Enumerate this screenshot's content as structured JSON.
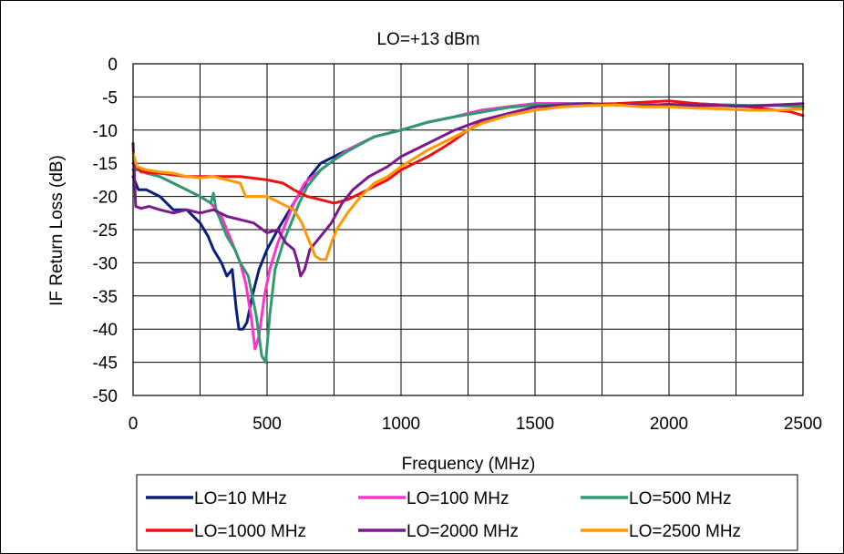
{
  "chart_data": {
    "type": "line",
    "title": "LO=+13 dBm",
    "xlabel": "Frequency (MHz)",
    "ylabel": "IF Return Loss (dB)",
    "xlim": [
      0,
      2500
    ],
    "ylim": [
      -50,
      0
    ],
    "xticks": [
      0,
      500,
      1000,
      1500,
      2000,
      2500
    ],
    "yticks": [
      0,
      -5,
      -10,
      -15,
      -20,
      -25,
      -30,
      -35,
      -40,
      -45,
      -50
    ],
    "x_gridlines": [
      0,
      250,
      500,
      750,
      1000,
      1250,
      1500,
      1750,
      2000,
      2250,
      2500
    ],
    "grid": true,
    "legend_position": "bottom",
    "series": [
      {
        "name": "LO=10 MHz",
        "color": "#0a1f7a",
        "points": [
          [
            0,
            -17
          ],
          [
            20,
            -19
          ],
          [
            50,
            -19
          ],
          [
            100,
            -20
          ],
          [
            150,
            -22
          ],
          [
            200,
            -22
          ],
          [
            250,
            -24
          ],
          [
            280,
            -26
          ],
          [
            300,
            -28
          ],
          [
            330,
            -30
          ],
          [
            350,
            -32
          ],
          [
            370,
            -31
          ],
          [
            385,
            -37
          ],
          [
            395,
            -40
          ],
          [
            410,
            -40
          ],
          [
            425,
            -39
          ],
          [
            445,
            -35
          ],
          [
            470,
            -31
          ],
          [
            500,
            -28
          ],
          [
            540,
            -25
          ],
          [
            570,
            -23
          ],
          [
            600,
            -21
          ],
          [
            615,
            -20
          ],
          [
            630,
            -19
          ],
          [
            660,
            -17
          ],
          [
            700,
            -15
          ],
          [
            750,
            -14
          ],
          [
            800,
            -13
          ],
          [
            900,
            -11
          ],
          [
            1000,
            -10
          ],
          [
            1100,
            -8.8
          ],
          [
            1200,
            -8
          ],
          [
            1300,
            -7
          ],
          [
            1400,
            -6.5
          ],
          [
            1500,
            -6
          ],
          [
            1600,
            -6
          ],
          [
            1700,
            -6
          ],
          [
            1800,
            -6.2
          ],
          [
            1900,
            -6.1
          ],
          [
            2000,
            -6.3
          ],
          [
            2100,
            -6
          ],
          [
            2200,
            -6.2
          ],
          [
            2300,
            -6.3
          ],
          [
            2400,
            -6.3
          ],
          [
            2500,
            -6.5
          ]
        ]
      },
      {
        "name": "LO=100 MHz",
        "color": "#ff33cc",
        "points": [
          [
            0,
            -16
          ],
          [
            30,
            -16
          ],
          [
            50,
            -16.5
          ],
          [
            100,
            -17
          ],
          [
            150,
            -18
          ],
          [
            200,
            -19
          ],
          [
            250,
            -20
          ],
          [
            290,
            -21
          ],
          [
            310,
            -22
          ],
          [
            330,
            -23
          ],
          [
            350,
            -25
          ],
          [
            380,
            -28
          ],
          [
            400,
            -30
          ],
          [
            420,
            -33
          ],
          [
            440,
            -38
          ],
          [
            455,
            -43
          ],
          [
            470,
            -41
          ],
          [
            490,
            -35
          ],
          [
            510,
            -31
          ],
          [
            540,
            -27
          ],
          [
            570,
            -24
          ],
          [
            600,
            -21
          ],
          [
            640,
            -18
          ],
          [
            700,
            -16
          ],
          [
            750,
            -14.5
          ],
          [
            800,
            -13
          ],
          [
            900,
            -11
          ],
          [
            1000,
            -10
          ],
          [
            1100,
            -8.8
          ],
          [
            1200,
            -8
          ],
          [
            1300,
            -7
          ],
          [
            1400,
            -6.5
          ],
          [
            1500,
            -6
          ],
          [
            1600,
            -6
          ],
          [
            1700,
            -6
          ],
          [
            1800,
            -6.2
          ],
          [
            1900,
            -6.1
          ],
          [
            2000,
            -6.3
          ],
          [
            2100,
            -6
          ],
          [
            2200,
            -6.2
          ],
          [
            2300,
            -6.3
          ],
          [
            2400,
            -6.3
          ],
          [
            2500,
            -6.5
          ]
        ]
      },
      {
        "name": "LO=500 MHz",
        "color": "#2e9a6e",
        "points": [
          [
            0,
            -16
          ],
          [
            30,
            -16
          ],
          [
            50,
            -16.5
          ],
          [
            100,
            -17
          ],
          [
            150,
            -18
          ],
          [
            200,
            -19
          ],
          [
            250,
            -20
          ],
          [
            290,
            -21
          ],
          [
            300,
            -19.5
          ],
          [
            310,
            -22
          ],
          [
            330,
            -24
          ],
          [
            350,
            -26
          ],
          [
            380,
            -28
          ],
          [
            400,
            -30
          ],
          [
            430,
            -32
          ],
          [
            460,
            -38
          ],
          [
            480,
            -44
          ],
          [
            495,
            -45
          ],
          [
            510,
            -38
          ],
          [
            530,
            -31
          ],
          [
            560,
            -27
          ],
          [
            590,
            -24
          ],
          [
            620,
            -21
          ],
          [
            650,
            -18.5
          ],
          [
            700,
            -16
          ],
          [
            750,
            -14.5
          ],
          [
            800,
            -13.2
          ],
          [
            900,
            -11
          ],
          [
            1000,
            -10
          ],
          [
            1100,
            -8.8
          ],
          [
            1200,
            -8
          ],
          [
            1300,
            -7.3
          ],
          [
            1400,
            -6.6
          ],
          [
            1500,
            -6.2
          ],
          [
            1600,
            -6.1
          ],
          [
            1700,
            -6
          ],
          [
            1800,
            -6.2
          ],
          [
            1900,
            -6.1
          ],
          [
            2000,
            -6.3
          ],
          [
            2100,
            -6.2
          ],
          [
            2200,
            -6.2
          ],
          [
            2300,
            -6.3
          ],
          [
            2400,
            -6.2
          ],
          [
            2500,
            -6.5
          ]
        ]
      },
      {
        "name": "LO=1000 MHz",
        "color": "#ee1111",
        "points": [
          [
            0,
            -15
          ],
          [
            30,
            -16.3
          ],
          [
            100,
            -16.5
          ],
          [
            200,
            -17
          ],
          [
            300,
            -17
          ],
          [
            400,
            -17
          ],
          [
            500,
            -17.5
          ],
          [
            560,
            -18
          ],
          [
            600,
            -19
          ],
          [
            650,
            -20
          ],
          [
            700,
            -20.5
          ],
          [
            750,
            -21
          ],
          [
            800,
            -20.5
          ],
          [
            850,
            -19.5
          ],
          [
            900,
            -18.5
          ],
          [
            950,
            -17.5
          ],
          [
            1000,
            -16
          ],
          [
            1050,
            -15
          ],
          [
            1100,
            -14
          ],
          [
            1150,
            -12.8
          ],
          [
            1200,
            -11.5
          ],
          [
            1250,
            -10
          ],
          [
            1300,
            -8.8
          ],
          [
            1400,
            -7.5
          ],
          [
            1500,
            -6.5
          ],
          [
            1600,
            -6.3
          ],
          [
            1700,
            -6.1
          ],
          [
            1800,
            -6
          ],
          [
            1900,
            -5.8
          ],
          [
            2000,
            -5.6
          ],
          [
            2100,
            -6
          ],
          [
            2200,
            -6.3
          ],
          [
            2300,
            -6.5
          ],
          [
            2400,
            -7
          ],
          [
            2450,
            -7.2
          ],
          [
            2500,
            -7.8
          ]
        ]
      },
      {
        "name": "LO=2000 MHz",
        "color": "#7a1a8c",
        "points": [
          [
            0,
            -12
          ],
          [
            10,
            -21.5
          ],
          [
            30,
            -21.8
          ],
          [
            60,
            -21.5
          ],
          [
            100,
            -22
          ],
          [
            150,
            -22.5
          ],
          [
            200,
            -22
          ],
          [
            250,
            -22.5
          ],
          [
            300,
            -22
          ],
          [
            350,
            -23
          ],
          [
            400,
            -23.5
          ],
          [
            450,
            -24
          ],
          [
            500,
            -25.5
          ],
          [
            540,
            -25
          ],
          [
            570,
            -27
          ],
          [
            600,
            -28
          ],
          [
            615,
            -30
          ],
          [
            625,
            -32
          ],
          [
            640,
            -31
          ],
          [
            660,
            -28
          ],
          [
            700,
            -26
          ],
          [
            740,
            -24
          ],
          [
            780,
            -21
          ],
          [
            820,
            -19
          ],
          [
            880,
            -17
          ],
          [
            950,
            -15.5
          ],
          [
            1000,
            -14
          ],
          [
            1100,
            -12
          ],
          [
            1200,
            -10
          ],
          [
            1300,
            -8.5
          ],
          [
            1400,
            -7.5
          ],
          [
            1500,
            -6.5
          ],
          [
            1600,
            -6.2
          ],
          [
            1700,
            -6
          ],
          [
            1800,
            -6.2
          ],
          [
            1900,
            -6.3
          ],
          [
            2000,
            -6.1
          ],
          [
            2100,
            -6.3
          ],
          [
            2200,
            -6.3
          ],
          [
            2300,
            -6.4
          ],
          [
            2400,
            -6.2
          ],
          [
            2500,
            -6
          ]
        ]
      },
      {
        "name": "LO=2500 MHz",
        "color": "#ff9900",
        "points": [
          [
            0,
            -13.5
          ],
          [
            15,
            -15.5
          ],
          [
            50,
            -16
          ],
          [
            100,
            -16.3
          ],
          [
            150,
            -16.5
          ],
          [
            200,
            -17
          ],
          [
            250,
            -17.2
          ],
          [
            300,
            -17
          ],
          [
            350,
            -17.5
          ],
          [
            400,
            -18
          ],
          [
            420,
            -20
          ],
          [
            450,
            -20
          ],
          [
            500,
            -20
          ],
          [
            550,
            -21
          ],
          [
            600,
            -22
          ],
          [
            630,
            -24
          ],
          [
            660,
            -27
          ],
          [
            680,
            -29
          ],
          [
            700,
            -29.5
          ],
          [
            720,
            -29.5
          ],
          [
            740,
            -27
          ],
          [
            760,
            -25
          ],
          [
            800,
            -22.5
          ],
          [
            850,
            -20
          ],
          [
            900,
            -18
          ],
          [
            950,
            -17
          ],
          [
            1000,
            -15.5
          ],
          [
            1100,
            -13
          ],
          [
            1200,
            -11
          ],
          [
            1300,
            -9
          ],
          [
            1400,
            -7.8
          ],
          [
            1500,
            -7
          ],
          [
            1600,
            -6.5
          ],
          [
            1700,
            -6.3
          ],
          [
            1800,
            -6.2
          ],
          [
            1900,
            -6.5
          ],
          [
            2000,
            -6.5
          ],
          [
            2100,
            -6.7
          ],
          [
            2200,
            -6.8
          ],
          [
            2300,
            -7
          ],
          [
            2400,
            -7
          ],
          [
            2500,
            -6.8
          ]
        ]
      }
    ]
  }
}
